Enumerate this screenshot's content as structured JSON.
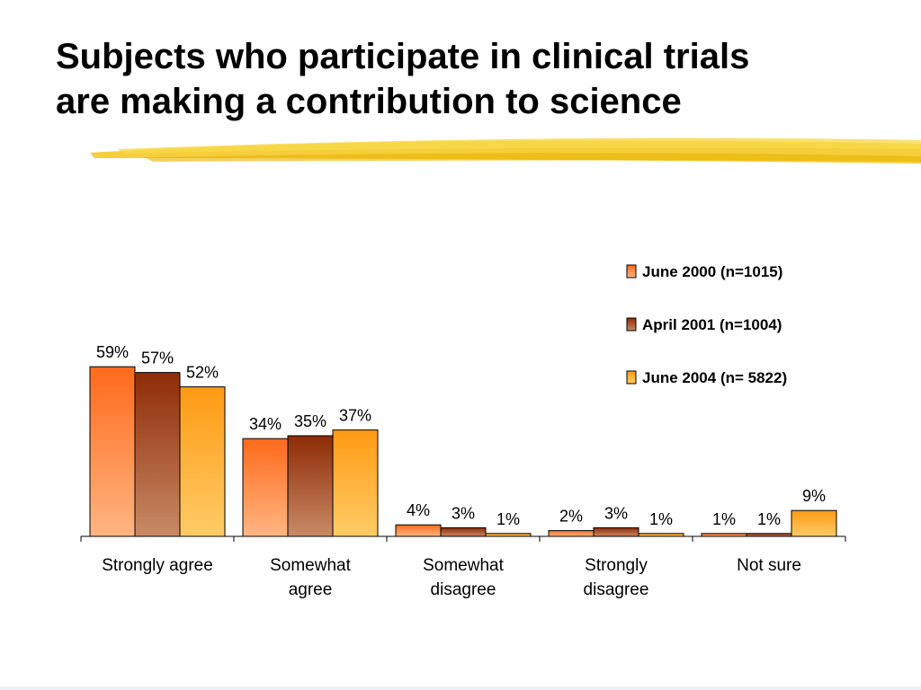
{
  "slide": {
    "title_line1": "Subjects who participate in clinical trials",
    "title_line2": "are making a contribution to science"
  },
  "colors": {
    "highlighter": "#f5c419",
    "series": [
      {
        "top": "#ff6a1a",
        "bottom": "#ffb583",
        "edge": "#000000"
      },
      {
        "top": "#8e2c06",
        "bottom": "#c88a66",
        "edge": "#000000"
      },
      {
        "top": "#ff9a14",
        "bottom": "#ffcc66",
        "edge": "#000000"
      }
    ]
  },
  "chart_data": {
    "type": "bar",
    "title": "",
    "xlabel": "",
    "ylabel": "",
    "ylim": [
      0,
      60
    ],
    "grid": false,
    "legend_position": "top-right",
    "categories": [
      [
        "Strongly agree"
      ],
      [
        "Somewhat",
        "agree"
      ],
      [
        "Somewhat",
        "disagree"
      ],
      [
        "Strongly",
        "disagree"
      ],
      [
        "Not sure"
      ]
    ],
    "series": [
      {
        "name": "June 2000 (n=1015)",
        "values": [
          59,
          34,
          4,
          2,
          1
        ]
      },
      {
        "name": "April 2001 (n=1004)",
        "values": [
          57,
          35,
          3,
          3,
          1
        ]
      },
      {
        "name": "June 2004 (n= 5822)",
        "values": [
          52,
          37,
          1,
          1,
          9
        ]
      }
    ],
    "value_suffix": "%"
  }
}
